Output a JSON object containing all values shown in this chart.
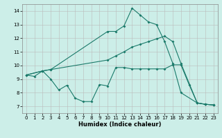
{
  "xlabel": "Humidex (Indice chaleur)",
  "bg_color": "#cceee8",
  "line_color": "#1a7a6a",
  "grid_color": "#bbbbbb",
  "xlim": [
    -0.5,
    23.5
  ],
  "ylim": [
    6.5,
    14.5
  ],
  "xticks": [
    0,
    1,
    2,
    3,
    4,
    5,
    6,
    7,
    8,
    9,
    10,
    11,
    12,
    13,
    14,
    15,
    16,
    17,
    18,
    19,
    20,
    21,
    22,
    23
  ],
  "yticks": [
    7,
    8,
    9,
    10,
    11,
    12,
    13,
    14
  ],
  "line1_x": [
    0,
    1,
    2,
    3,
    10,
    11,
    12,
    13,
    14,
    15,
    16,
    17,
    18,
    19,
    21,
    22,
    23
  ],
  "line1_y": [
    9.3,
    9.2,
    9.6,
    9.7,
    12.5,
    12.5,
    12.9,
    14.2,
    13.7,
    13.2,
    13.0,
    11.75,
    10.15,
    8.0,
    7.25,
    7.15,
    7.1
  ],
  "line2_x": [
    0,
    2,
    3,
    4,
    5,
    6,
    7,
    8,
    9,
    10,
    11,
    12,
    13,
    14,
    15,
    16,
    17,
    18,
    19,
    20,
    21,
    22,
    23
  ],
  "line2_y": [
    9.3,
    9.6,
    9.0,
    8.2,
    8.55,
    7.6,
    7.35,
    7.35,
    8.6,
    8.5,
    9.85,
    9.85,
    9.75,
    9.75,
    9.75,
    9.75,
    9.75,
    10.05,
    10.05,
    8.6,
    7.25,
    7.15,
    7.1
  ],
  "line3_x": [
    0,
    2,
    3,
    10,
    11,
    12,
    13,
    14,
    15,
    16,
    17,
    18,
    19,
    21,
    22,
    23
  ],
  "line3_y": [
    9.3,
    9.6,
    9.7,
    10.4,
    10.7,
    11.0,
    11.35,
    11.55,
    11.75,
    11.95,
    12.15,
    11.75,
    10.15,
    7.25,
    7.15,
    7.1
  ]
}
